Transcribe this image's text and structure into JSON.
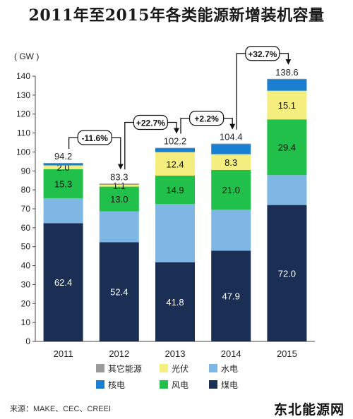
{
  "title": "2011年至2015年各类能源新增装机容量",
  "source": "来源：MAKE、CEC、CREEI",
  "watermark": "东北能源网",
  "chart_data": {
    "type": "bar",
    "stacked": true,
    "categories": [
      "2011",
      "2012",
      "2013",
      "2014",
      "2015"
    ],
    "unit_label": "( GW )",
    "ylim": [
      0,
      140
    ],
    "yticks": [
      0,
      10,
      20,
      30,
      40,
      50,
      60,
      70,
      80,
      90,
      100,
      110,
      120,
      130,
      140
    ],
    "grid": false,
    "series": [
      {
        "name": "煤电",
        "color": "#1b2f55",
        "values": [
          62.4,
          52.4,
          41.8,
          47.9,
          72.0
        ],
        "labels": [
          "62.4",
          "52.4",
          "41.8",
          "47.9",
          "72.0"
        ]
      },
      {
        "name": "水电",
        "color": "#7fb7e4",
        "values": [
          13.2,
          16.3,
          30.8,
          21.6,
          15.8
        ],
        "labels": [
          "",
          "",
          "",
          "",
          ""
        ]
      },
      {
        "name": "风电",
        "color": "#20c04a",
        "values": [
          15.3,
          13.0,
          14.9,
          21.0,
          29.4
        ],
        "labels": [
          "15.3",
          "13.0",
          "14.9",
          "21.0",
          "29.4"
        ]
      },
      {
        "name": "光伏",
        "color": "#f3ee7d",
        "values": [
          2.0,
          1.1,
          12.4,
          8.3,
          15.1
        ],
        "labels": [
          "2.0",
          "1.1",
          "12.4",
          "8.3",
          "15.1"
        ]
      },
      {
        "name": "核电",
        "color": "#1a7fd0",
        "values": [
          1.2,
          0.4,
          2.2,
          5.5,
          6.2
        ],
        "labels": [
          "",
          "",
          "",
          "",
          ""
        ]
      },
      {
        "name": "其它能源",
        "color": "#9a9a9a",
        "values": [
          0.1,
          0.1,
          0.1,
          0.1,
          0.1
        ],
        "labels": [
          "",
          "",
          "",
          "",
          ""
        ]
      }
    ],
    "totals": [
      "94.2",
      "83.3",
      "102.2",
      "104.4",
      "138.6"
    ],
    "changes": [
      {
        "from": "2011",
        "to": "2012",
        "label": "-11.6%"
      },
      {
        "from": "2012",
        "to": "2013",
        "label": "+22.7%"
      },
      {
        "from": "2013",
        "to": "2014",
        "label": "+2.2%"
      },
      {
        "from": "2014",
        "to": "2015",
        "label": "+32.7%"
      }
    ],
    "legend": {
      "placement": "bottom",
      "order": [
        "其它能源",
        "光伏",
        "水电",
        "核电",
        "风电",
        "煤电"
      ]
    }
  }
}
